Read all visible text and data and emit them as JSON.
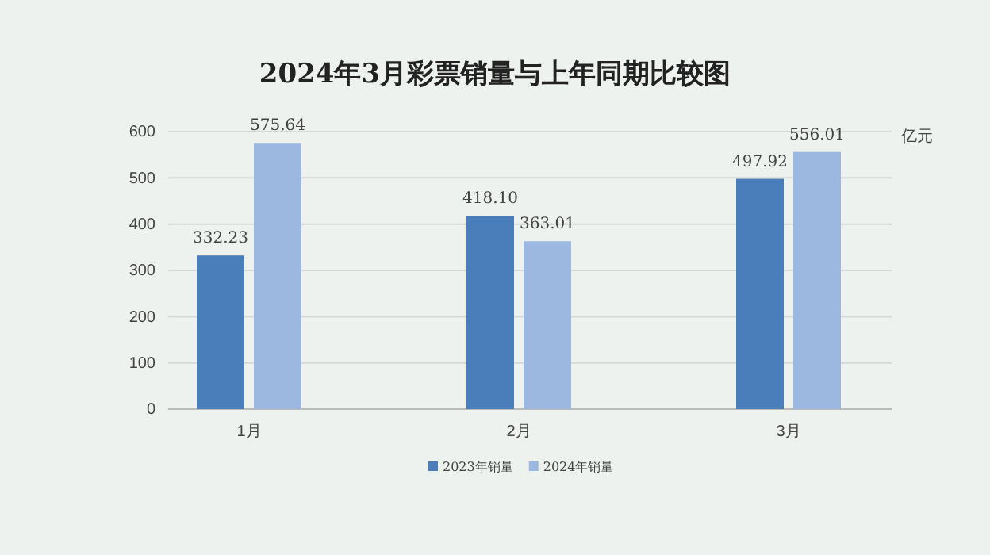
{
  "chart_data": {
    "type": "bar",
    "title": "2024年3月彩票销量与上年同期比较图",
    "categories": [
      "1月",
      "2月",
      "3月"
    ],
    "series": [
      {
        "name": "2023年销量",
        "color": "#4a7ebb",
        "values": [
          332.23,
          418.1,
          497.92
        ],
        "value_labels": [
          "332.23",
          "418.10",
          "497.92"
        ]
      },
      {
        "name": "2024年销量",
        "color": "#9db8e0",
        "values": [
          575.64,
          363.01,
          556.01
        ],
        "value_labels": [
          "575.64",
          "363.01",
          "556.01"
        ]
      }
    ],
    "ylim": [
      0,
      600
    ],
    "yticks": [
      0,
      100,
      200,
      300,
      400,
      500,
      600
    ],
    "grid": "y",
    "legend": "bottom",
    "annotations": [
      "亿元"
    ]
  }
}
